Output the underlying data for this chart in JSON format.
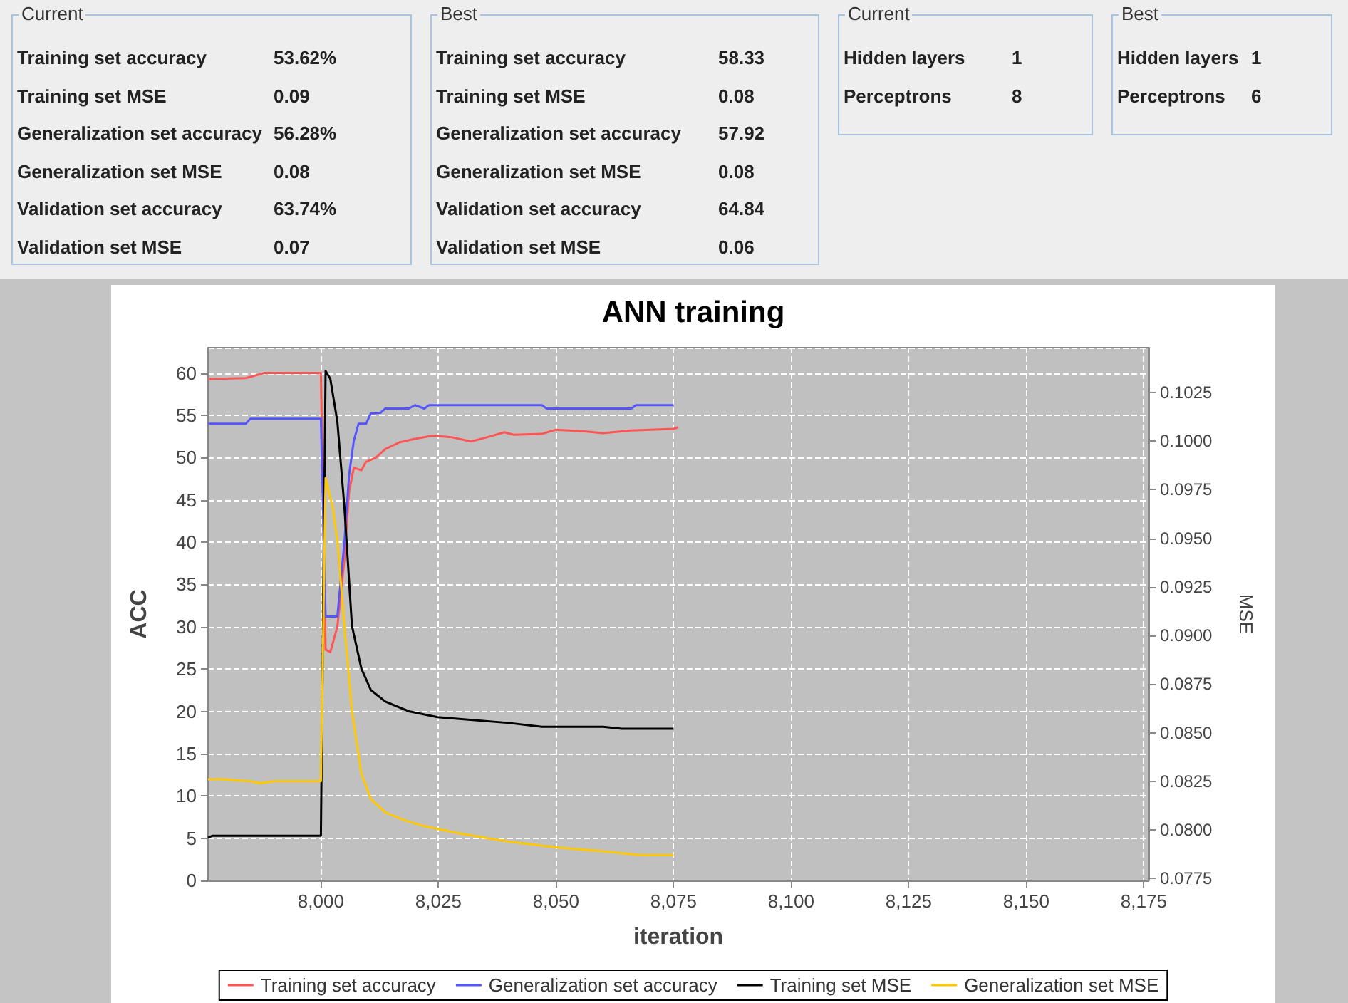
{
  "chart_data": [
    {
      "type": "other",
      "title": "Current",
      "annotations": [
        "Training set accuracy",
        "53.62%",
        "Training set MSE",
        "0.09",
        "Generalization set accuracy",
        "56.28%",
        "Generalization set MSE",
        "0.08",
        "Validation set accuracy",
        "63.74%",
        "Validation set MSE",
        "0.07"
      ]
    },
    {
      "type": "other",
      "title": "Best",
      "annotations": [
        "Training set accuracy",
        "58.33",
        "Training set MSE",
        "0.08",
        "Generalization set accuracy",
        "57.92",
        "Generalization set MSE",
        "0.08",
        "Validation set accuracy",
        "64.84",
        "Validation set MSE",
        "0.06"
      ]
    },
    {
      "type": "other",
      "title": "Current",
      "annotations": [
        "Hidden layers",
        "1",
        "Perceptrons",
        "8"
      ]
    },
    {
      "type": "other",
      "title": "Best",
      "annotations": [
        "Hidden layers",
        "1",
        "Perceptrons",
        "6"
      ]
    },
    {
      "type": "line",
      "title": "ANN training",
      "xlabel": "iteration",
      "ylabel": "ACC",
      "y2label": "MSE",
      "grid": true,
      "legend": "bottom",
      "xlim": [
        7976,
        8176
      ],
      "xticks": [
        {
          "value": 8000,
          "label": "8,000"
        },
        {
          "value": 8025,
          "label": "8,025"
        },
        {
          "value": 8050,
          "label": "8,050"
        },
        {
          "value": 8075,
          "label": "8,075"
        },
        {
          "value": 8100,
          "label": "8,100"
        },
        {
          "value": 8125,
          "label": "8,125"
        },
        {
          "value": 8150,
          "label": "8,150"
        },
        {
          "value": 8175,
          "label": "8,175"
        }
      ],
      "ylim": [
        0,
        63
      ],
      "yticks": [
        0,
        5,
        10,
        15,
        20,
        25,
        30,
        35,
        40,
        45,
        50,
        55,
        60
      ],
      "y2lim": [
        0.0774,
        0.1048
      ],
      "y2ticks": [
        0.0775,
        {
          "value": 0.08,
          "label": "0.0800"
        },
        0.0825,
        {
          "value": 0.085,
          "label": "0.0850"
        },
        0.0875,
        {
          "value": 0.09,
          "label": "0.0900"
        },
        0.0925,
        {
          "value": 0.095,
          "label": "0.0950"
        },
        0.0975,
        {
          "value": 0.1,
          "label": "0.1000"
        },
        0.1025
      ],
      "series": [
        {
          "name": "Training set accuracy",
          "color": "#ff5555",
          "x": [
            7976,
            7984,
            7988,
            8000,
            8001,
            8002,
            8003.5,
            8005,
            8006,
            8007,
            8008.6,
            8009.6,
            8011.7,
            8013.7,
            8016.7,
            8019.8,
            8023.8,
            8027.9,
            8031.9,
            8036,
            8039,
            8041,
            8047,
            8050,
            8056,
            8060,
            8066,
            8070,
            8075,
            8076
          ],
          "values": [
            59.3,
            59.4,
            60,
            60,
            27.3,
            27.0,
            30,
            38,
            46,
            48.8,
            48.5,
            49.5,
            50,
            51,
            51.8,
            52.2,
            52.6,
            52.4,
            51.9,
            52.5,
            53.0,
            52.7,
            52.8,
            53.3,
            53.1,
            52.9,
            53.2,
            53.3,
            53.4,
            53.6
          ]
        },
        {
          "name": "Generalization set accuracy",
          "color": "#5555ff",
          "x": [
            7976,
            7984,
            7985,
            8000,
            8001,
            8003.5,
            8005,
            8006,
            8007,
            8008,
            8009.6,
            8010.6,
            8012.7,
            8013.7,
            8018.7,
            8020,
            8022,
            8023,
            8047,
            8048,
            8066,
            8067,
            8075
          ],
          "values": [
            54,
            54,
            54.6,
            54.6,
            31.2,
            31.2,
            40,
            48,
            52,
            54,
            54,
            55.2,
            55.3,
            55.8,
            55.8,
            56.2,
            55.8,
            56.2,
            56.2,
            55.8,
            55.8,
            56.2,
            56.2
          ]
        },
        {
          "name": "Training set MSE",
          "color": "#000000",
          "axis": "y2",
          "x": [
            7976,
            7977,
            8000,
            8001,
            8002,
            8003.5,
            8005,
            8006.6,
            8008.6,
            8010.6,
            8013.7,
            8018.7,
            8024.8,
            8029.9,
            8040,
            8047,
            8060,
            8064,
            8075
          ],
          "values": [
            0.0796,
            0.0797,
            0.0797,
            0.1036,
            0.1032,
            0.101,
            0.0966,
            0.0905,
            0.0883,
            0.0872,
            0.0866,
            0.0861,
            0.0858,
            0.0857,
            0.0855,
            0.0853,
            0.0853,
            0.0852,
            0.0852
          ]
        },
        {
          "name": "Generalization set MSE",
          "color": "#ffc800",
          "axis": "y2",
          "x": [
            7976,
            7979,
            7985,
            7987,
            7990,
            8000,
            8001,
            8002.5,
            8003.5,
            8005,
            8006.6,
            8008.6,
            8010.6,
            8013.7,
            8017.7,
            8021.8,
            8029.9,
            8040,
            8050,
            8060,
            8068,
            8075
          ],
          "values": [
            0.0826,
            0.0826,
            0.0825,
            0.0824,
            0.0825,
            0.0825,
            0.0981,
            0.0966,
            0.0949,
            0.0905,
            0.0861,
            0.0829,
            0.0816,
            0.0809,
            0.0805,
            0.0802,
            0.0798,
            0.0794,
            0.0791,
            0.0789,
            0.0787,
            0.0787
          ]
        }
      ]
    }
  ]
}
